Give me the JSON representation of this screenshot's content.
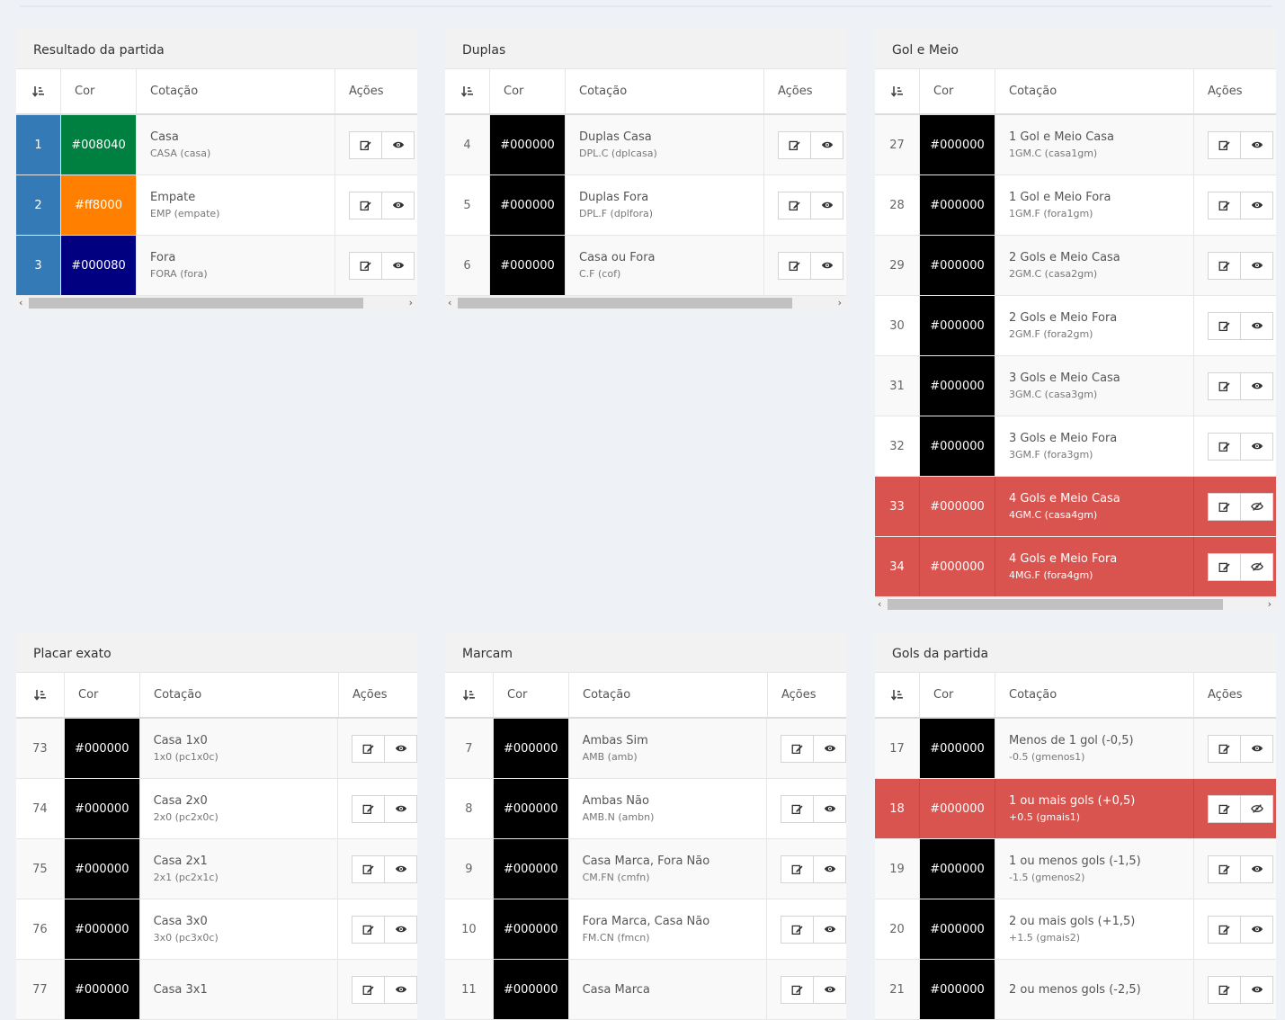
{
  "headers": {
    "id": "",
    "cor": "Cor",
    "cotacao": "Cotação",
    "acoes": "Ações"
  },
  "panels": [
    {
      "title": "Resultado da partida",
      "rows": [
        {
          "id": "1",
          "cor": "#008040",
          "name": "Casa",
          "code": "CASA (casa)",
          "style": "blue"
        },
        {
          "id": "2",
          "cor": "#ff8000",
          "name": "Empate",
          "code": "EMP (empate)",
          "style": "blue"
        },
        {
          "id": "3",
          "cor": "#000080",
          "name": "Fora",
          "code": "FORA (fora)",
          "style": "blue"
        }
      ]
    },
    {
      "title": "Duplas",
      "rows": [
        {
          "id": "4",
          "cor": "#000000",
          "name": "Duplas Casa",
          "code": "DPL.C (dplcasa)",
          "style": ""
        },
        {
          "id": "5",
          "cor": "#000000",
          "name": "Duplas Fora",
          "code": "DPL.F (dplfora)",
          "style": ""
        },
        {
          "id": "6",
          "cor": "#000000",
          "name": "Casa ou Fora",
          "code": "C.F (cof)",
          "style": ""
        }
      ]
    },
    {
      "title": "Gol e Meio",
      "rows": [
        {
          "id": "27",
          "cor": "#000000",
          "name": "1 Gol e Meio Casa",
          "code": "1GM.C (casa1gm)",
          "style": ""
        },
        {
          "id": "28",
          "cor": "#000000",
          "name": "1 Gol e Meio Fora",
          "code": "1GM.F (fora1gm)",
          "style": ""
        },
        {
          "id": "29",
          "cor": "#000000",
          "name": "2 Gols e Meio Casa",
          "code": "2GM.C (casa2gm)",
          "style": ""
        },
        {
          "id": "30",
          "cor": "#000000",
          "name": "2 Gols e Meio Fora",
          "code": "2GM.F (fora2gm)",
          "style": ""
        },
        {
          "id": "31",
          "cor": "#000000",
          "name": "3 Gols e Meio Casa",
          "code": "3GM.C (casa3gm)",
          "style": ""
        },
        {
          "id": "32",
          "cor": "#000000",
          "name": "3 Gols e Meio Fora",
          "code": "3GM.F (fora3gm)",
          "style": ""
        },
        {
          "id": "33",
          "cor": "#000000",
          "name": "4 Gols e Meio Casa",
          "code": "4GM.C (casa4gm)",
          "style": "red"
        },
        {
          "id": "34",
          "cor": "#000000",
          "name": "4 Gols e Meio Fora",
          "code": "4MG.F (fora4gm)",
          "style": "red"
        }
      ]
    },
    {
      "title": "Placar exato",
      "rows": [
        {
          "id": "73",
          "cor": "#000000",
          "name": "Casa 1x0",
          "code": "1x0 (pc1x0c)",
          "style": ""
        },
        {
          "id": "74",
          "cor": "#000000",
          "name": "Casa 2x0",
          "code": "2x0 (pc2x0c)",
          "style": ""
        },
        {
          "id": "75",
          "cor": "#000000",
          "name": "Casa 2x1",
          "code": "2x1 (pc2x1c)",
          "style": ""
        },
        {
          "id": "76",
          "cor": "#000000",
          "name": "Casa 3x0",
          "code": "3x0 (pc3x0c)",
          "style": ""
        },
        {
          "id": "77",
          "cor": "#000000",
          "name": "Casa 3x1",
          "code": "",
          "style": ""
        }
      ]
    },
    {
      "title": "Marcam",
      "rows": [
        {
          "id": "7",
          "cor": "#000000",
          "name": "Ambas Sim",
          "code": "AMB (amb)",
          "style": ""
        },
        {
          "id": "8",
          "cor": "#000000",
          "name": "Ambas Não",
          "code": "AMB.N (ambn)",
          "style": ""
        },
        {
          "id": "9",
          "cor": "#000000",
          "name": "Casa Marca, Fora Não",
          "code": "CM.FN (cmfn)",
          "style": ""
        },
        {
          "id": "10",
          "cor": "#000000",
          "name": "Fora Marca, Casa Não",
          "code": "FM.CN (fmcn)",
          "style": ""
        },
        {
          "id": "11",
          "cor": "#000000",
          "name": "Casa Marca",
          "code": "",
          "style": ""
        }
      ]
    },
    {
      "title": "Gols da partida",
      "rows": [
        {
          "id": "17",
          "cor": "#000000",
          "name": "Menos de 1 gol (-0,5)",
          "code": "-0.5 (gmenos1)",
          "style": ""
        },
        {
          "id": "18",
          "cor": "#000000",
          "name": "1 ou mais gols (+0,5)",
          "code": "+0.5 (gmais1)",
          "style": "red"
        },
        {
          "id": "19",
          "cor": "#000000",
          "name": "1 ou menos gols (-1,5)",
          "code": "-1.5 (gmenos2)",
          "style": ""
        },
        {
          "id": "20",
          "cor": "#000000",
          "name": "2 ou mais gols (+1,5)",
          "code": "+1.5 (gmais2)",
          "style": ""
        },
        {
          "id": "21",
          "cor": "#000000",
          "name": "2 ou menos gols (-2,5)",
          "code": "",
          "style": ""
        }
      ]
    }
  ]
}
